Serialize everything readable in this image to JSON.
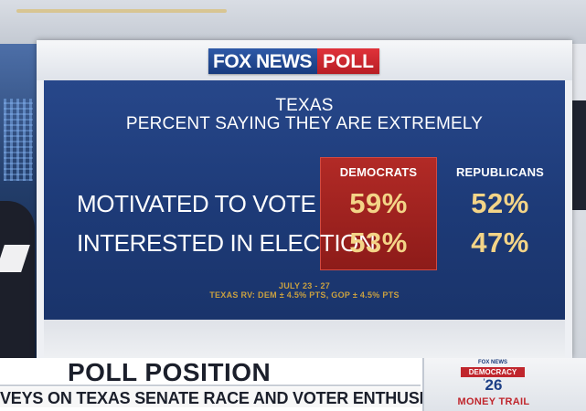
{
  "poll": {
    "logo": {
      "fox_news": "FOX NEWS",
      "poll": "POLL"
    },
    "headline_line1": "TEXAS",
    "headline_line2": "PERCENT SAYING THEY ARE EXTREMELY",
    "columns": {
      "democrats": "DEMOCRATS",
      "republicans": "REPUBLICANS"
    },
    "rows": [
      {
        "label": "MOTIVATED TO VOTE",
        "democrats": "59%",
        "republicans": "52%"
      },
      {
        "label": "INTERESTED IN ELECTION",
        "democrats": "53%",
        "republicans": "47%"
      }
    ],
    "footnote_line1": "JULY 23 - 27",
    "footnote_line2": "TEXAS RV: DEM ± 4.5% PTS, GOP ± 4.5% PTS",
    "colors": {
      "blue_panel": "#1d3a77",
      "dem_box": "#a02421",
      "value_gold": "#f3d487"
    }
  },
  "lower_third": {
    "headline": "POLL POSITION",
    "subline": "VEYS ON TEXAS SENATE RACE AND VOTER ENTHUSIASM",
    "brand": "FOX NEWS",
    "democracy": "DEMOCRACY",
    "year": "26",
    "year_prefix": "'",
    "segment": "MONEY TRAIL"
  }
}
